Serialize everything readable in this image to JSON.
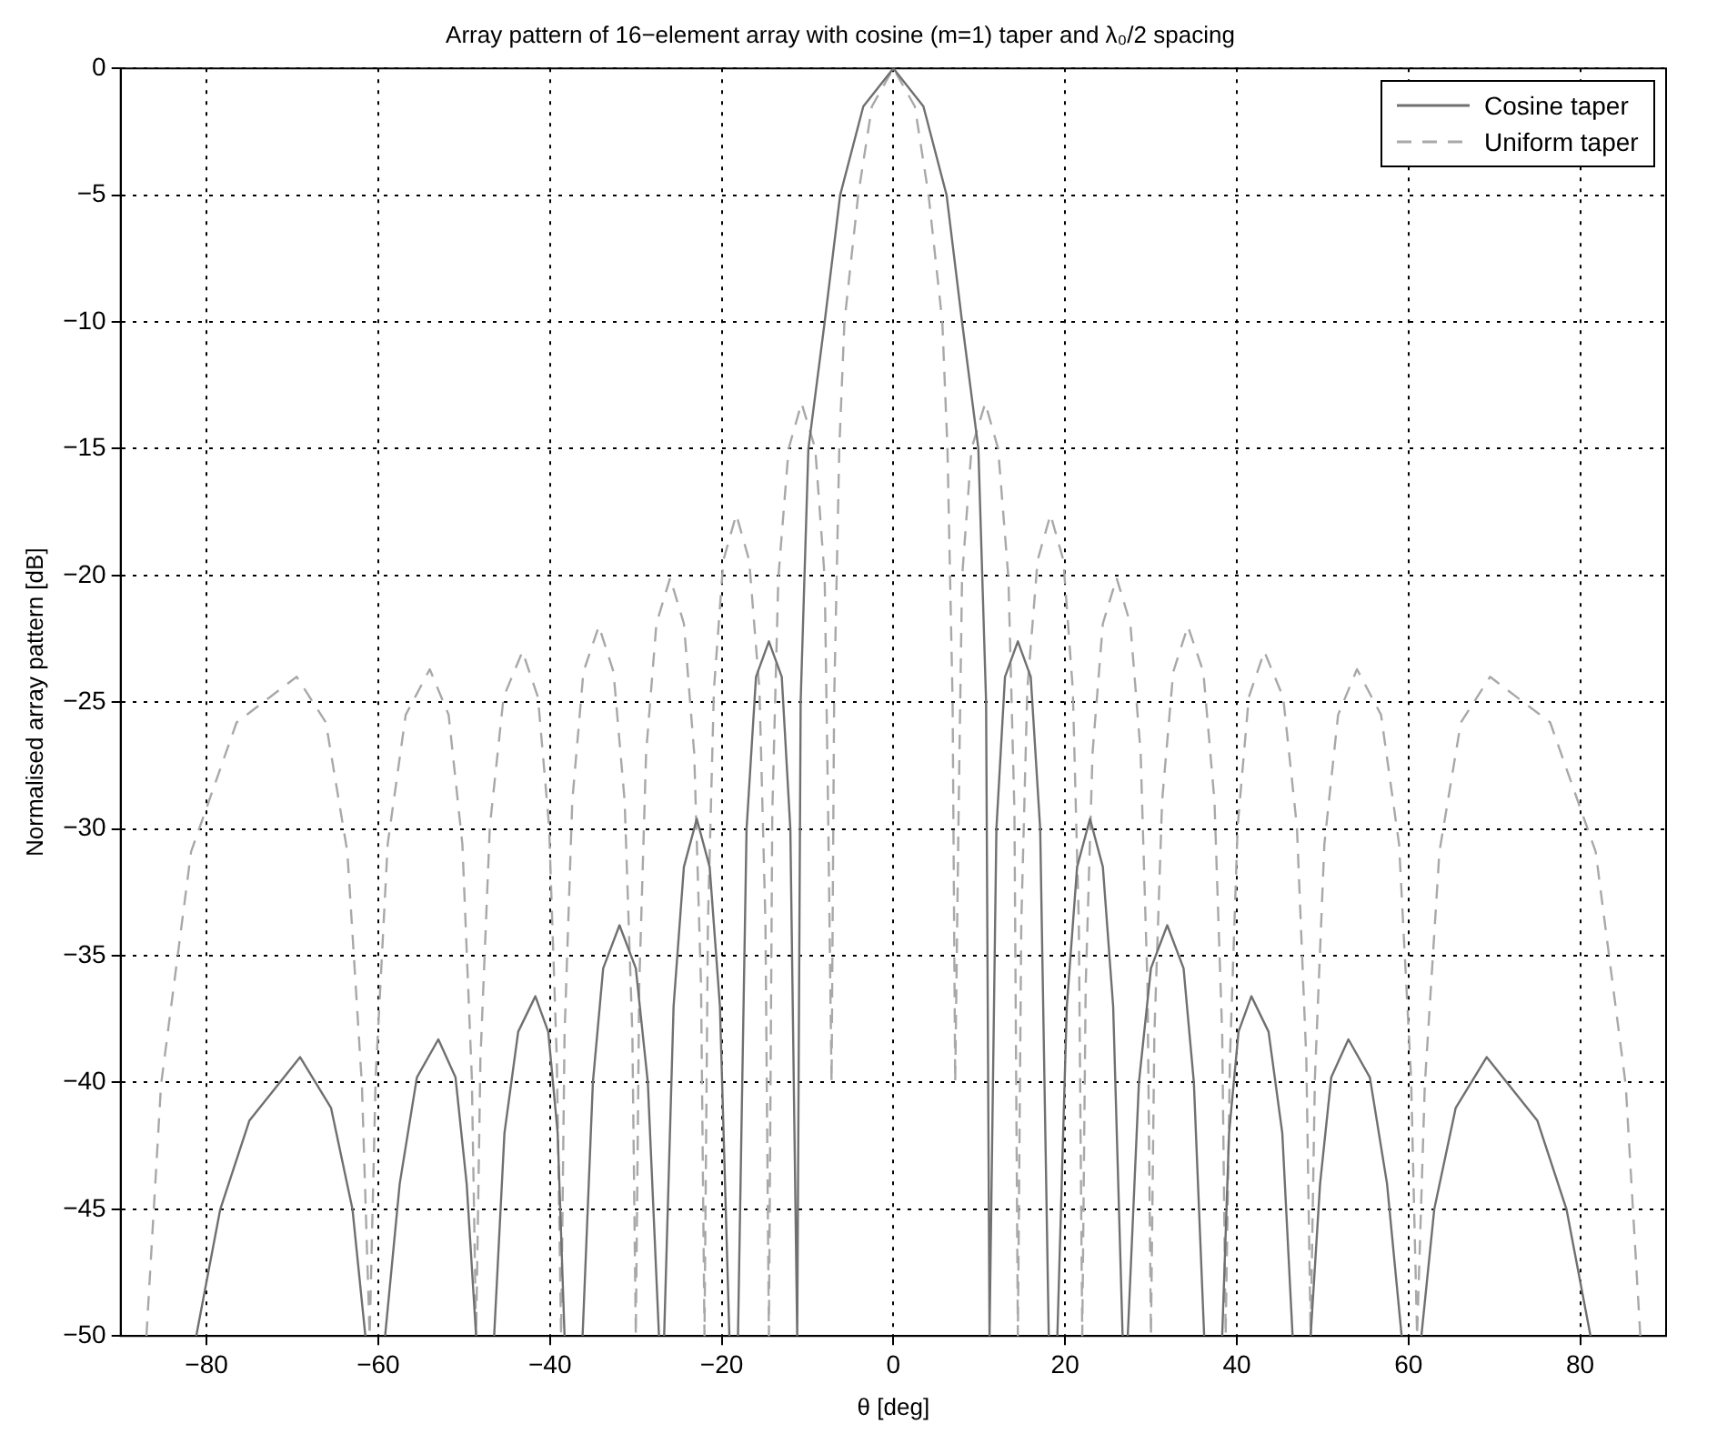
{
  "chart_data": {
    "type": "line",
    "title": "Array pattern of 16−element array with cosine (m=1) taper and λ₀/2 spacing",
    "xlabel": "θ [deg]",
    "ylabel": "Normalised array pattern [dB]",
    "xlim": [
      -90,
      90
    ],
    "xticks": [
      -80,
      -60,
      -40,
      -20,
      0,
      20,
      40,
      60,
      80
    ],
    "ylim": [
      -50,
      0
    ],
    "yticks": [
      -50,
      -45,
      -40,
      -35,
      -30,
      -25,
      -20,
      -15,
      -10,
      -5,
      0
    ],
    "grid": true,
    "legend": "top right",
    "marker": "none",
    "series": [
      {
        "name": "Cosine taper",
        "color": "#707070",
        "line_style": "solid",
        "x": [
          -81.2,
          -78.4,
          -75,
          -69.1,
          -65.5,
          -63,
          -61.5,
          -60.3,
          -59.2,
          -57.5,
          -55.5,
          -53,
          -51,
          -49.7,
          -48.6,
          -47.5,
          -46.5,
          -45.3,
          -43.7,
          -41.7,
          -40.2,
          -39.1,
          -38.3,
          -37.2,
          -36.2,
          -35,
          -33.8,
          -31.9,
          -30,
          -28.6,
          -27.3,
          -27,
          -26.7,
          -25.6,
          -24.4,
          -22.9,
          -21.4,
          -20.2,
          -19.1,
          -18.6,
          -18.1,
          -17.1,
          -16,
          -14.5,
          -13,
          -12,
          -11.2,
          -10.8,
          -9.9,
          -8,
          -6.2,
          -3.5,
          0,
          3.5,
          6.2,
          8,
          9.9,
          10.8,
          11.2,
          12,
          13,
          14.5,
          16,
          17.1,
          18.1,
          18.6,
          19.1,
          20.2,
          21.4,
          22.9,
          24.4,
          25.6,
          26.7,
          27,
          27.3,
          28.6,
          30,
          31.9,
          33.8,
          35,
          36.2,
          37.2,
          38.3,
          39.1,
          40.2,
          41.7,
          43.7,
          45.3,
          46.5,
          47.5,
          48.6,
          49.7,
          51,
          53,
          55.5,
          57.5,
          59.2,
          60.3,
          61.5,
          63,
          65.5,
          69.1,
          75,
          78.4,
          81.2
        ],
        "values": [
          -50,
          -45,
          -41.5,
          -39,
          -41,
          -45,
          -50,
          null,
          -50,
          -44,
          -39.8,
          -38.3,
          -39.8,
          -44,
          -50,
          null,
          -50,
          -42,
          -38,
          -36.6,
          -38,
          -42,
          -50,
          null,
          -50,
          -40,
          -35.5,
          -33.8,
          -35.5,
          -40,
          -50,
          null,
          -50,
          -37,
          -31.5,
          -29.6,
          -31.5,
          -37,
          -50,
          null,
          -50,
          -30,
          -24,
          -22.6,
          -24,
          -30,
          -50,
          -25,
          -15,
          -10,
          -5,
          -1.5,
          0,
          -1.5,
          -5,
          -10,
          -15,
          -25,
          -50,
          -30,
          -24,
          -22.6,
          -24,
          -30,
          -50,
          null,
          -50,
          -37,
          -31.5,
          -29.6,
          -31.5,
          -37,
          -50,
          null,
          -50,
          -40,
          -35.5,
          -33.8,
          -35.5,
          -40,
          -50,
          null,
          -50,
          -42,
          -38,
          -36.6,
          -38,
          -42,
          -50,
          null,
          -50,
          -44,
          -39.8,
          -38.3,
          -39.8,
          -44,
          -50,
          null,
          -50,
          -45,
          -41,
          -39,
          -41.5,
          -45,
          -50
        ]
      },
      {
        "name": "Uniform taper",
        "color": "#a8a8a8",
        "line_style": "dashed",
        "x": [
          -87,
          -85.3,
          -81.8,
          -76.5,
          -69.5,
          -66.1,
          -63.6,
          -61.9,
          -61,
          -60.3,
          -58.9,
          -56.8,
          -54,
          -51.8,
          -50.2,
          -49.1,
          -48.6,
          -48.1,
          -47,
          -45.4,
          -43.2,
          -41.4,
          -40.1,
          -39.2,
          -38.7,
          -38.3,
          -37.4,
          -36.1,
          -34.3,
          -32.6,
          -31.3,
          -30.4,
          -30,
          -29.6,
          -28.8,
          -27.6,
          -26,
          -24.4,
          -23.2,
          -22.4,
          -22,
          -21.6,
          -20.9,
          -19.8,
          -18.3,
          -16.8,
          -15.6,
          -14.9,
          -14.5,
          -14.1,
          -13.4,
          -12.2,
          -10.7,
          -9.1,
          -8,
          -7.6,
          -7.2,
          -6.9,
          -6.3,
          -5.7,
          -4.1,
          -2.5,
          0,
          2.5,
          4.1,
          5.7,
          6.3,
          6.9,
          7.2,
          7.6,
          8,
          9.1,
          10.7,
          12.2,
          13.4,
          14.1,
          14.5,
          14.9,
          15.6,
          16.8,
          18.3,
          19.8,
          20.9,
          21.6,
          22,
          22.4,
          23.2,
          24.4,
          26,
          27.6,
          28.8,
          29.6,
          30,
          30.4,
          31.3,
          32.6,
          34.3,
          36.1,
          37.4,
          38.3,
          38.7,
          39.2,
          40.1,
          41.4,
          43.2,
          45.4,
          47,
          48.1,
          48.6,
          49.1,
          50.2,
          51.8,
          54,
          56.8,
          58.9,
          60.3,
          61,
          61.9,
          63.6,
          66.1,
          69.5,
          76.5,
          81.8,
          85.3,
          87
        ],
        "values": [
          -50,
          -40.1,
          -30.9,
          -25.8,
          -24,
          -25.8,
          -30.9,
          -40.1,
          -50,
          -39.8,
          -30.6,
          -25.5,
          -23.7,
          -25.5,
          -30.6,
          -39.8,
          -50,
          -39.1,
          -29.9,
          -24.8,
          -23,
          -24.8,
          -29.9,
          -39.1,
          -50,
          -38.1,
          -28.9,
          -23.8,
          -22,
          -23.8,
          -28.9,
          -38.1,
          -50,
          -36.2,
          -27,
          -21.9,
          -20.1,
          -21.9,
          -27,
          -36.2,
          -50,
          -33.7,
          -24.5,
          -19.4,
          -17.6,
          -19.4,
          -24.5,
          -33.7,
          -50,
          -29.3,
          -20.1,
          -15,
          -13.2,
          -15,
          -20.1,
          -29.3,
          -40,
          -25,
          -15,
          -10,
          -5,
          -1.5,
          0,
          -1.5,
          -5,
          -10,
          -15,
          -25,
          -40,
          -29.3,
          -20.1,
          -15,
          -13.2,
          -15,
          -20.1,
          -29.3,
          -50,
          -33.7,
          -24.5,
          -19.4,
          -17.6,
          -19.4,
          -24.5,
          -33.7,
          -50,
          -36.2,
          -27,
          -21.9,
          -20.1,
          -21.9,
          -27,
          -36.2,
          -50,
          -38.1,
          -28.9,
          -23.8,
          -22,
          -23.8,
          -28.9,
          -38.1,
          -50,
          -39.1,
          -29.9,
          -24.8,
          -23,
          -24.8,
          -29.9,
          -39.1,
          -50,
          -39.8,
          -30.6,
          -25.5,
          -23.7,
          -25.5,
          -30.6,
          -39.8,
          -50,
          -40.1,
          -30.9,
          -25.8,
          -24,
          -25.8,
          -30.9,
          -40.1,
          -50
        ]
      }
    ]
  }
}
